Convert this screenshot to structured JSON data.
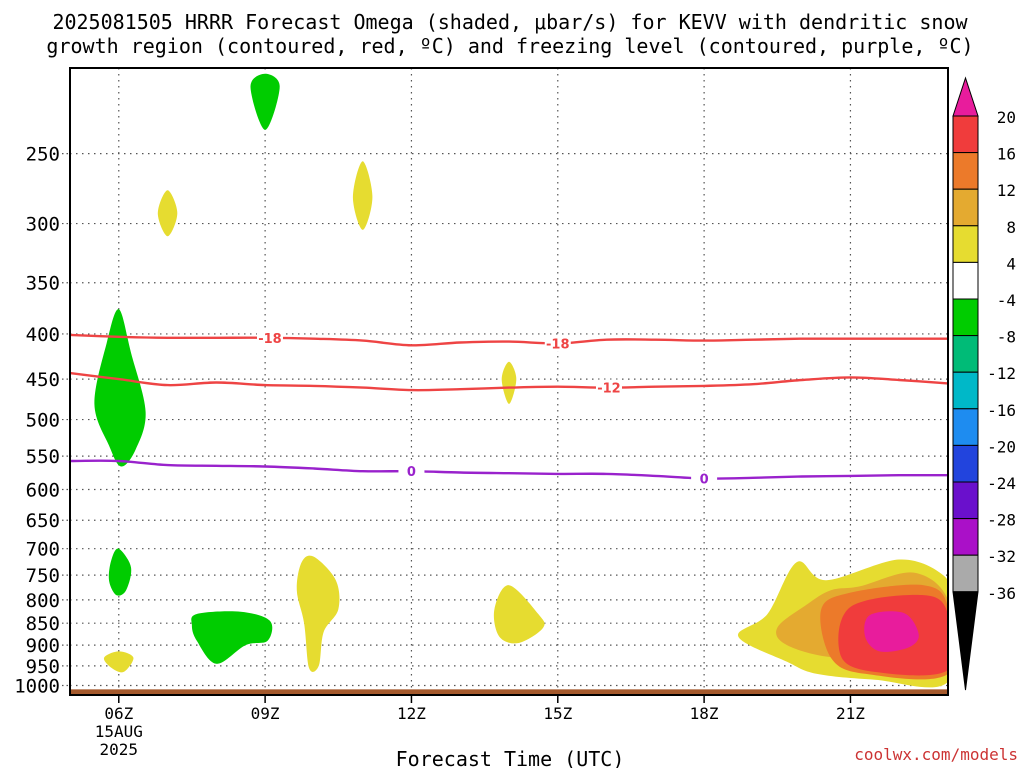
{
  "chart_data": {
    "type": "heatmap",
    "title_lines": [
      "2025081505 HRRR Forecast Omega (shaded, μbar/s) for KEVV with dendritic snow",
      "growth region (contoured, red, ºC) and freezing level (contoured, purple, ºC)"
    ],
    "xlabel": "Forecast Time (UTC)",
    "x_ticks": [
      {
        "h": 6,
        "label": "06Z",
        "sub": [
          "15AUG",
          "2025"
        ]
      },
      {
        "h": 9,
        "label": "09Z"
      },
      {
        "h": 12,
        "label": "12Z"
      },
      {
        "h": 15,
        "label": "15Z"
      },
      {
        "h": 18,
        "label": "18Z"
      },
      {
        "h": 21,
        "label": "21Z"
      }
    ],
    "xlim": [
      5,
      23
    ],
    "ylim": [
      1025,
      200
    ],
    "y_scale": "log",
    "y_ticks": [
      250,
      300,
      350,
      400,
      450,
      500,
      550,
      600,
      650,
      700,
      750,
      800,
      850,
      900,
      950,
      1000
    ],
    "grid": "dotted",
    "colorbar": {
      "labels": [
        "20",
        "16",
        "12",
        "8",
        "4",
        "-4",
        "-8",
        "-12",
        "-16",
        "-20",
        "-24",
        "-28",
        "-32",
        "-36"
      ],
      "colors": [
        "#e81c9c",
        "#f03c3c",
        "#ec7a2a",
        "#e4aa30",
        "#e6dc30",
        "#ffffff",
        "#00cc00",
        "#00bb77",
        "#00b8c8",
        "#1e8cf0",
        "#2244dd",
        "#6a10cc",
        "#aa10c8",
        "#aaaaaa",
        "#000000"
      ]
    },
    "dgz_contours": [
      {
        "label": "-18",
        "points": [
          [
            5,
            401
          ],
          [
            6,
            403
          ],
          [
            7,
            404
          ],
          [
            8,
            404
          ],
          [
            9,
            404
          ],
          [
            10,
            405
          ],
          [
            11,
            407
          ],
          [
            12,
            412
          ],
          [
            13,
            409
          ],
          [
            14,
            408
          ],
          [
            15,
            410
          ],
          [
            16,
            406
          ],
          [
            17,
            406
          ],
          [
            18,
            407
          ],
          [
            19,
            406
          ],
          [
            20,
            405
          ],
          [
            21,
            405
          ],
          [
            22,
            405
          ],
          [
            23,
            405
          ]
        ]
      },
      {
        "label": "-12",
        "points": [
          [
            5,
            443
          ],
          [
            6,
            450
          ],
          [
            7,
            457
          ],
          [
            8,
            454
          ],
          [
            9,
            457
          ],
          [
            10,
            458
          ],
          [
            11,
            460
          ],
          [
            12,
            463
          ],
          [
            13,
            462
          ],
          [
            14,
            460
          ],
          [
            15,
            459
          ],
          [
            16,
            460
          ],
          [
            17,
            459
          ],
          [
            18,
            458
          ],
          [
            19,
            456
          ],
          [
            20,
            451
          ],
          [
            21,
            448
          ],
          [
            22,
            451
          ],
          [
            23,
            455
          ]
        ]
      }
    ],
    "freezing_contour": {
      "label": "0",
      "points": [
        [
          5,
          557
        ],
        [
          6,
          557
        ],
        [
          7,
          563
        ],
        [
          8,
          564
        ],
        [
          9,
          565
        ],
        [
          10,
          568
        ],
        [
          11,
          572
        ],
        [
          12,
          572
        ],
        [
          13,
          574
        ],
        [
          14,
          575
        ],
        [
          15,
          576
        ],
        [
          16,
          576
        ],
        [
          17,
          579
        ],
        [
          18,
          583
        ],
        [
          19,
          582
        ],
        [
          20,
          580
        ],
        [
          21,
          579
        ],
        [
          22,
          578
        ],
        [
          23,
          578
        ]
      ]
    },
    "omega_regions": [
      {
        "value": 6,
        "points": [
          [
            7,
            275
          ],
          [
            7.2,
            292
          ],
          [
            7,
            310
          ],
          [
            6.8,
            292
          ]
        ]
      },
      {
        "value": -6,
        "points": [
          [
            9,
            203
          ],
          [
            9.3,
            210
          ],
          [
            9,
            235
          ],
          [
            8.7,
            210
          ]
        ]
      },
      {
        "value": 6,
        "points": [
          [
            11,
            255
          ],
          [
            11.2,
            280
          ],
          [
            11,
            305
          ],
          [
            10.8,
            280
          ]
        ]
      },
      {
        "value": 6,
        "points": [
          [
            14,
            430
          ],
          [
            14.15,
            450
          ],
          [
            14,
            480
          ],
          [
            13.85,
            450
          ]
        ]
      },
      {
        "value": -6,
        "points": [
          [
            6,
            375
          ],
          [
            6.25,
            420
          ],
          [
            6.55,
            490
          ],
          [
            6.35,
            540
          ],
          [
            6.05,
            565
          ],
          [
            5.8,
            535
          ],
          [
            5.5,
            480
          ],
          [
            5.75,
            410
          ]
        ]
      },
      {
        "value": -6,
        "points": [
          [
            6,
            700
          ],
          [
            6.25,
            735
          ],
          [
            6.15,
            780
          ],
          [
            5.95,
            790
          ],
          [
            5.8,
            760
          ],
          [
            5.85,
            720
          ]
        ]
      },
      {
        "value": 6,
        "points": [
          [
            6,
            915
          ],
          [
            6.3,
            930
          ],
          [
            6.1,
            965
          ],
          [
            5.85,
            955
          ],
          [
            5.7,
            930
          ]
        ]
      },
      {
        "value": -6,
        "points": [
          [
            7.6,
            830
          ],
          [
            8.5,
            825
          ],
          [
            9.1,
            845
          ],
          [
            9.05,
            890
          ],
          [
            8.6,
            900
          ],
          [
            8.0,
            945
          ],
          [
            7.6,
            890
          ],
          [
            7.5,
            855
          ]
        ]
      },
      {
        "value": 6,
        "points": [
          [
            10,
            715
          ],
          [
            10.45,
            760
          ],
          [
            10.5,
            820
          ],
          [
            10.2,
            870
          ],
          [
            10.1,
            950
          ],
          [
            9.9,
            955
          ],
          [
            9.8,
            850
          ],
          [
            9.65,
            780
          ],
          [
            9.75,
            725
          ]
        ]
      },
      {
        "value": 6,
        "points": [
          [
            14,
            770
          ],
          [
            14.6,
            830
          ],
          [
            14.7,
            860
          ],
          [
            14.2,
            895
          ],
          [
            13.8,
            880
          ],
          [
            13.7,
            820
          ]
        ]
      },
      {
        "value": 6,
        "points": [
          [
            19.9,
            725
          ],
          [
            20.5,
            760
          ],
          [
            22,
            720
          ],
          [
            22.9,
            750
          ],
          [
            23,
            800
          ],
          [
            23,
            990
          ],
          [
            21.5,
            985
          ],
          [
            20.3,
            970
          ],
          [
            19.7,
            940
          ],
          [
            18.7,
            880
          ],
          [
            19.3,
            830
          ]
        ]
      },
      {
        "value": 10,
        "points": [
          [
            20.6,
            780
          ],
          [
            21.2,
            772
          ],
          [
            22.3,
            745
          ],
          [
            23,
            800
          ],
          [
            23,
            940
          ],
          [
            22.4,
            930
          ],
          [
            20.7,
            930
          ],
          [
            19.7,
            900
          ],
          [
            19.5,
            860
          ],
          [
            20.1,
            810
          ]
        ]
      },
      {
        "value": 14,
        "points": [
          [
            20.4,
            820
          ],
          [
            21,
            785
          ],
          [
            22.5,
            770
          ],
          [
            23,
            815
          ],
          [
            23,
            970
          ],
          [
            21.3,
            970
          ],
          [
            20.6,
            930
          ]
        ]
      },
      {
        "value": 18,
        "points": [
          [
            21,
            815
          ],
          [
            22.5,
            790
          ],
          [
            23,
            830
          ],
          [
            23,
            960
          ],
          [
            21.5,
            965
          ],
          [
            20.8,
            925
          ]
        ]
      },
      {
        "value": 22,
        "points": [
          [
            21.4,
            832
          ],
          [
            22.1,
            828
          ],
          [
            22.4,
            875
          ],
          [
            22.2,
            905
          ],
          [
            21.6,
            915
          ],
          [
            21.3,
            880
          ]
        ]
      }
    ],
    "terrain": {
      "top": 1010,
      "color": "#a55a2d"
    }
  },
  "credit": "coolwx.com/models"
}
